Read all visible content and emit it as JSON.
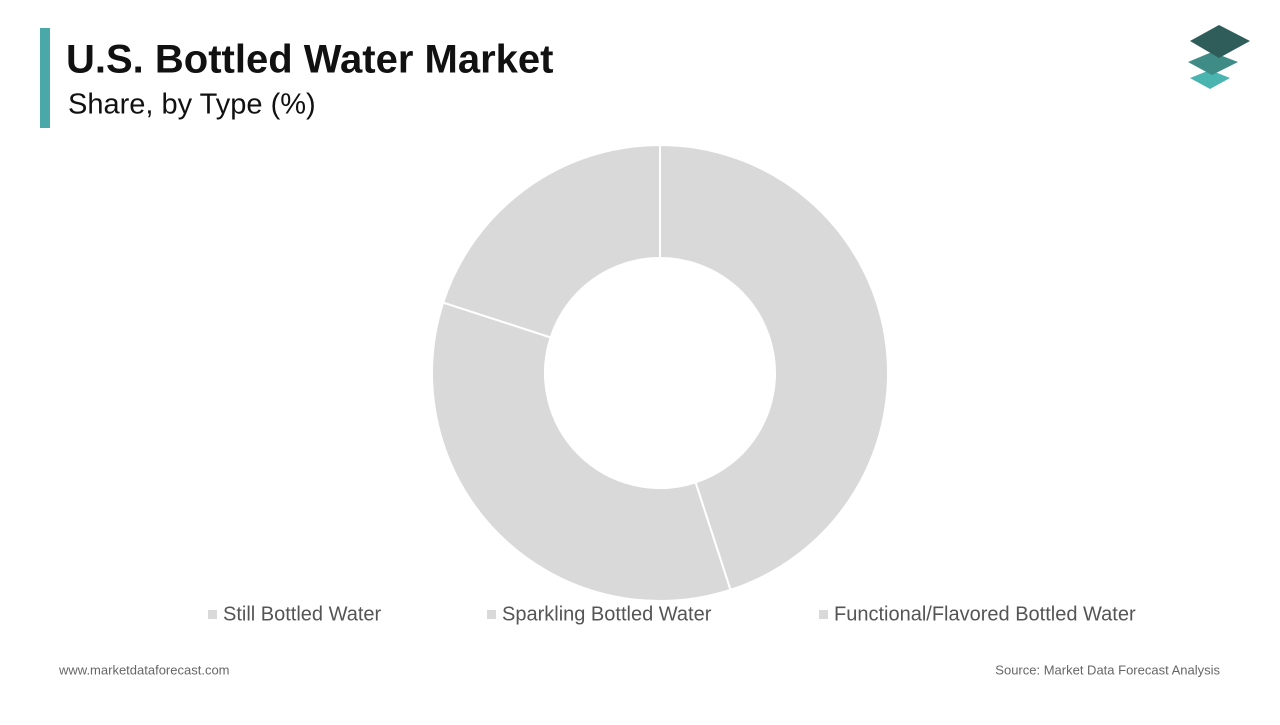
{
  "chart_data": {
    "type": "donut",
    "title": "U.S. Bottled Water Market",
    "subtitle": "Share, by Type (%)",
    "categories": [
      "Still Bottled Water",
      "Sparkling Bottled Water",
      "Functional/Flavored Bottled Water"
    ],
    "values": [
      45,
      35,
      20
    ],
    "color": "#d9d9d9"
  },
  "footer": {
    "website": "www.marketdataforecast.com",
    "source": "Source: Market Data Forecast Analysis"
  }
}
